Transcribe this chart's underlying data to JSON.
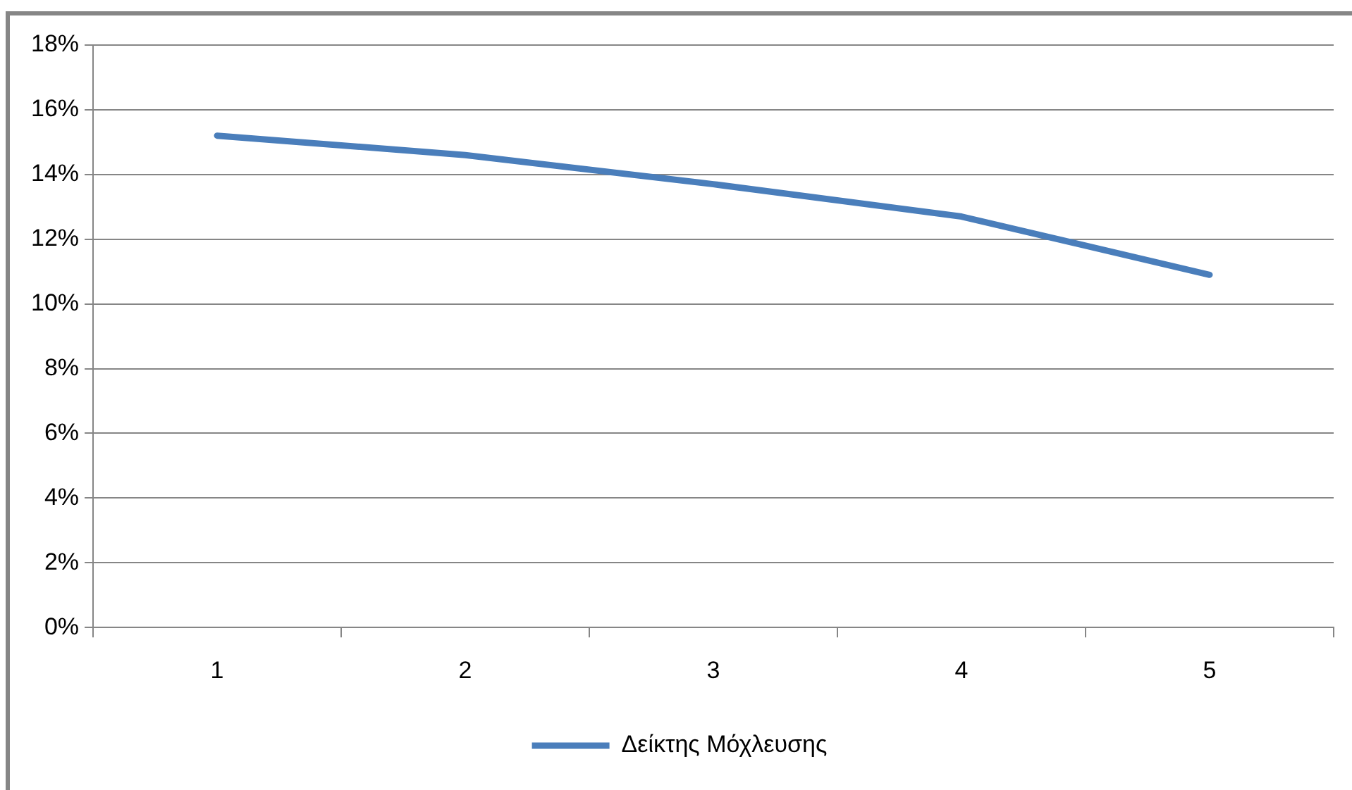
{
  "chart_data": {
    "type": "line",
    "categories": [
      "1",
      "2",
      "3",
      "4",
      "5"
    ],
    "series": [
      {
        "name": "Δείκτης Μόχλευσης",
        "color": "#4a7ebb",
        "values": [
          15.2,
          14.6,
          13.7,
          12.7,
          10.9
        ]
      }
    ],
    "ylim": [
      0,
      18
    ],
    "yticks": [
      {
        "value": 0,
        "label": "0%"
      },
      {
        "value": 2,
        "label": "2%"
      },
      {
        "value": 4,
        "label": "4%"
      },
      {
        "value": 6,
        "label": "6%"
      },
      {
        "value": 8,
        "label": "8%"
      },
      {
        "value": 10,
        "label": "10%"
      },
      {
        "value": 12,
        "label": "12%"
      },
      {
        "value": 14,
        "label": "14%"
      },
      {
        "value": 16,
        "label": "16%"
      },
      {
        "value": 18,
        "label": "18%"
      }
    ],
    "grid": "y",
    "legend": "bottom",
    "marker": "none",
    "line_style": "solid"
  }
}
